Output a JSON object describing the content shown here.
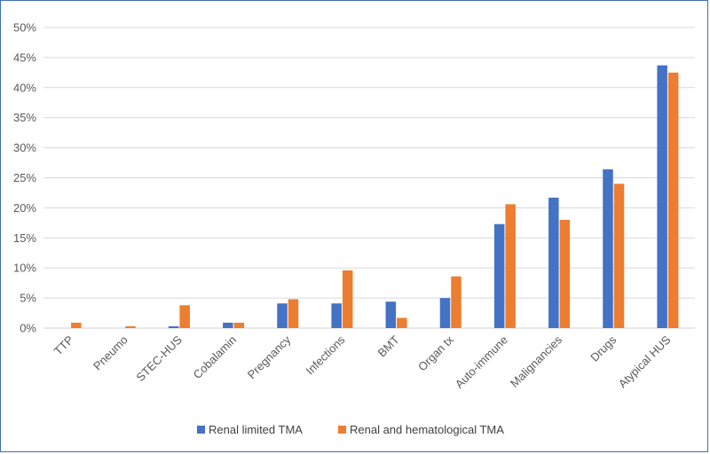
{
  "chart_data": {
    "type": "bar",
    "title": "",
    "xlabel": "",
    "ylabel": "",
    "ylim": [
      0,
      50
    ],
    "y_ticks": [
      0,
      5,
      10,
      15,
      20,
      25,
      30,
      35,
      40,
      45,
      50
    ],
    "y_tick_suffix": "%",
    "grid": "horizontal",
    "legend_position": "bottom",
    "categories": [
      "TTP",
      "Pneumo",
      "STEC-HUS",
      "Cobalamin",
      "Pregnancy",
      "Infections",
      "BMT",
      "Organ tx",
      "Auto-immune",
      "Malignancies",
      "Drugs",
      "Atypical HUS"
    ],
    "series": [
      {
        "name": "Renal limited TMA",
        "color": "#4472c4",
        "values": [
          0,
          0,
          0.3,
          0.9,
          4.1,
          4.1,
          4.4,
          5.0,
          17.3,
          21.7,
          26.4,
          43.7
        ]
      },
      {
        "name": "Renal and hematological TMA",
        "color": "#ed7d31",
        "values": [
          0.9,
          0.3,
          3.8,
          0.9,
          4.8,
          9.6,
          1.7,
          8.6,
          20.6,
          18.0,
          24.0,
          42.5
        ]
      }
    ]
  }
}
